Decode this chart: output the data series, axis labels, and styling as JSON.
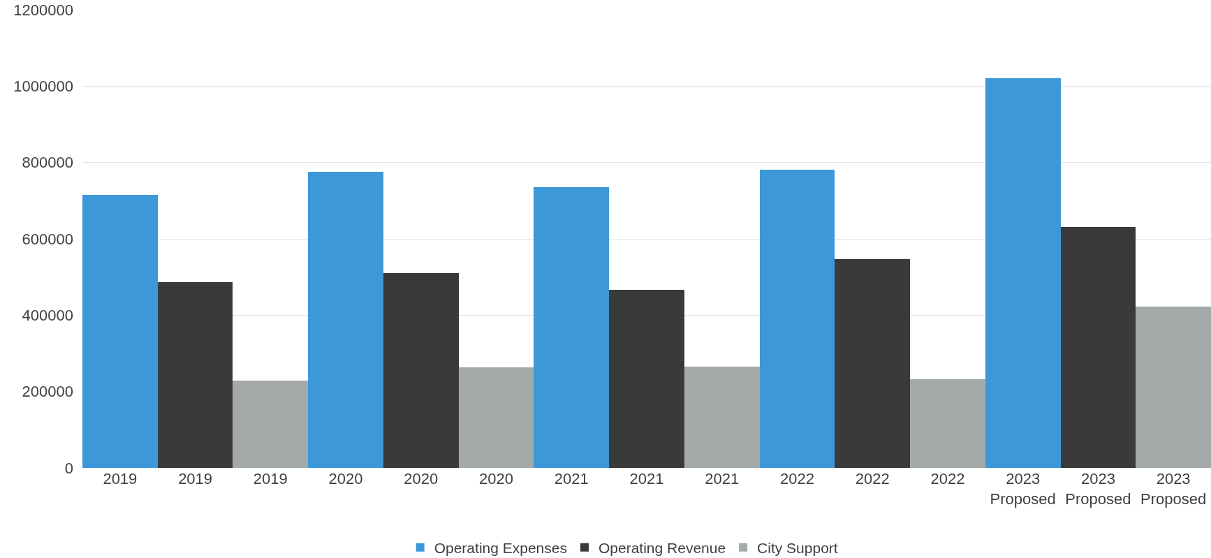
{
  "chart_data": {
    "type": "bar",
    "categories": [
      "2019",
      "2019",
      "2019",
      "2020",
      "2020",
      "2020",
      "2021",
      "2021",
      "2021",
      "2022",
      "2022",
      "2022",
      "2023 Proposed",
      "2023 Proposed",
      "2023 Proposed"
    ],
    "series": [
      {
        "name": "Operating Expenses",
        "color": "#3d98d9",
        "values": [
          716000,
          null,
          null,
          775000,
          null,
          null,
          735000,
          null,
          null,
          782000,
          null,
          null,
          1021000,
          null,
          null
        ]
      },
      {
        "name": "Operating Revenue",
        "color": "#3a3a3a",
        "values": [
          null,
          487000,
          null,
          null,
          510000,
          null,
          null,
          466000,
          null,
          null,
          547000,
          null,
          null,
          631000,
          null
        ]
      },
      {
        "name": "City Support",
        "color": "#a3aaa8",
        "values": [
          null,
          null,
          228000,
          null,
          null,
          263000,
          null,
          null,
          266000,
          null,
          null,
          233000,
          null,
          null,
          422000
        ]
      }
    ],
    "ylim": [
      0,
      1200000
    ],
    "yticks": [
      0,
      200000,
      400000,
      600000,
      800000,
      1000000,
      1200000
    ],
    "grid": "y",
    "legend": "bottom"
  }
}
